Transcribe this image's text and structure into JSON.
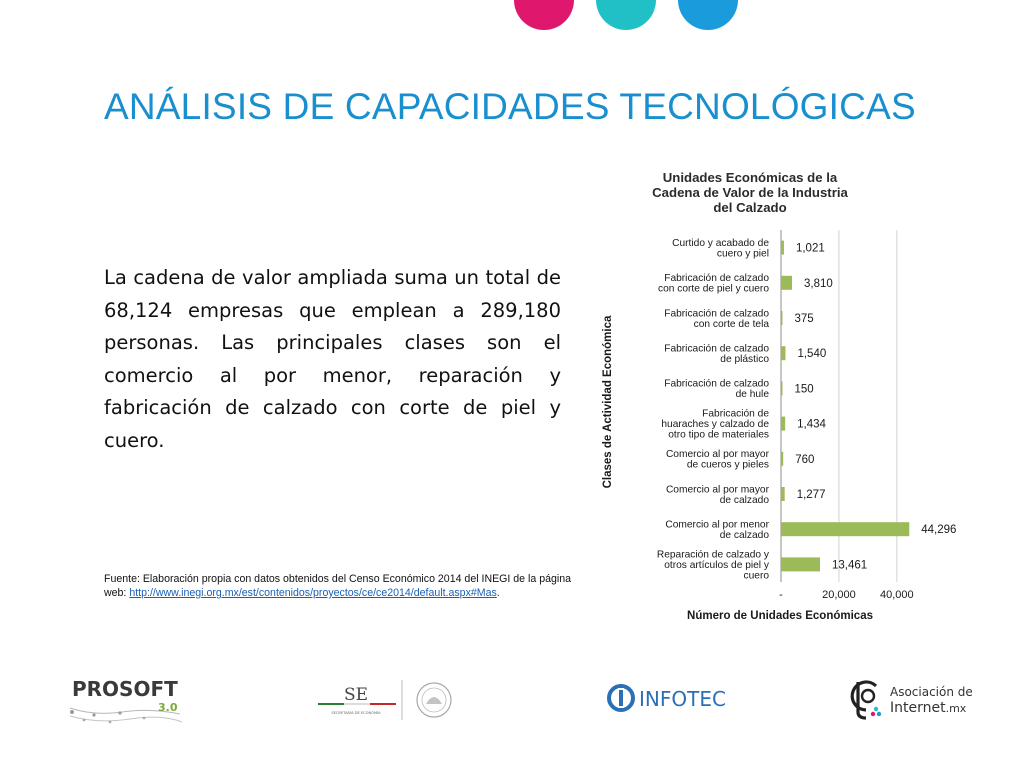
{
  "slide": {
    "title": "ANÁLISIS DE CAPACIDADES TECNOLÓGICAS",
    "accent_dots": [
      "#e0186d",
      "#21c0c6",
      "#1a9bdc"
    ],
    "title_color": "#1a8fcf",
    "body": "La cadena de valor ampliada suma un total de 68,124 empresas que emplean a 289,180 personas. Las principales clases son el comercio al por menor, reparación y fabricación de calzado con corte de piel y cuero.",
    "source_prefix": "Fuente: Elaboración propia con datos obtenidos del Censo Económico 2014 del INEGI de la página web: ",
    "source_link": "http://www.inegi.org.mx/est/contenidos/proyectos/ce/ce2014/default.aspx#Mas",
    "source_suffix": "."
  },
  "chart_data": {
    "type": "bar",
    "orientation": "horizontal",
    "title": [
      "Unidades Económicas de la",
      "Cadena de Valor de la Industria",
      "del Calzado"
    ],
    "xlabel": "Número de Unidades Económicas",
    "ylabel": "Clases de Actividad Económica",
    "categories": [
      [
        "Curtido y acabado de",
        "cuero y piel"
      ],
      [
        "Fabricación de calzado",
        "con corte de piel y cuero"
      ],
      [
        "Fabricación de calzado",
        "con corte de tela"
      ],
      [
        "Fabricación de calzado",
        "de plástico"
      ],
      [
        "Fabricación de calzado",
        "de hule"
      ],
      [
        "Fabricación de",
        "huaraches y calzado de",
        "otro tipo de materiales"
      ],
      [
        "Comercio al por mayor",
        "de cueros y pieles"
      ],
      [
        "Comercio al por mayor",
        "de calzado"
      ],
      [
        "Comercio al por menor",
        "de calzado"
      ],
      [
        "Reparación de calzado y",
        "otros artículos de piel y",
        "cuero"
      ]
    ],
    "values": [
      1021,
      3810,
      375,
      1540,
      150,
      1434,
      760,
      1277,
      44296,
      13461
    ],
    "value_labels": [
      "1,021",
      "3,810",
      "375",
      "1,540",
      "150",
      "1,434",
      "760",
      "1,277",
      "44,296",
      "13,461"
    ],
    "xticks": [
      "-",
      "20,000",
      "40,000"
    ],
    "xtick_values": [
      0,
      20000,
      40000
    ],
    "xlim": [
      0,
      48000
    ],
    "grid": true,
    "bar_color": "#9bbb59"
  },
  "footer": {
    "prosoft": {
      "name": "PROSOFT",
      "version": "3.0"
    },
    "se": {
      "abbr": "SE",
      "subtitle": "SECRETARÍA DE ECONOMÍA"
    },
    "infotec": {
      "name": "INFOTEC"
    },
    "asociacion": {
      "line1": "Asociación de",
      "line2_main": "Internet",
      "line2_tld": ".mx"
    }
  }
}
